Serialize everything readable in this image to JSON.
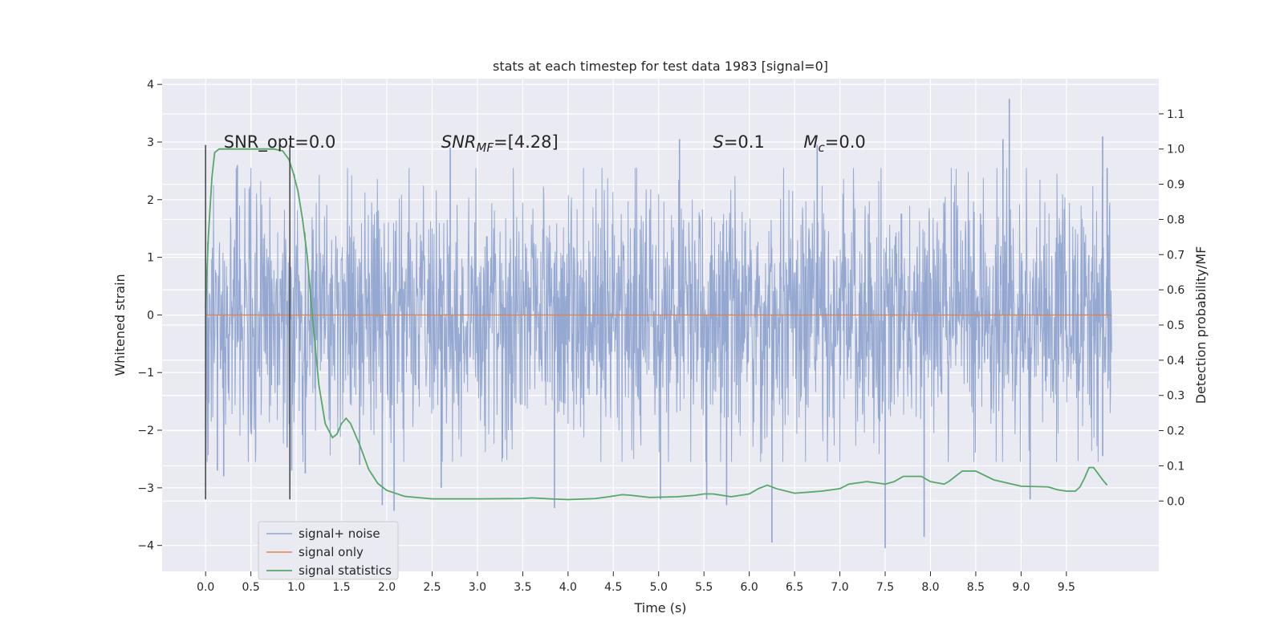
{
  "chart_data": {
    "type": "line",
    "title": "stats at each timestep for test data 1983 [signal=0]",
    "xlabel": "Time (s)",
    "ylabel": "Whitened strain",
    "y2label": "Detection probability/MF",
    "xlim": [
      -0.48,
      10.52
    ],
    "ylim": [
      -4.45,
      4.1
    ],
    "y2lim": [
      -0.2,
      1.2
    ],
    "x_ticks": [
      0.0,
      0.5,
      1.0,
      1.5,
      2.0,
      2.5,
      3.0,
      3.5,
      4.0,
      4.5,
      5.0,
      5.5,
      6.0,
      6.5,
      7.0,
      7.5,
      8.0,
      8.5,
      9.0,
      9.5
    ],
    "x_tick_labels": [
      "0.0",
      "0.5",
      "1.0",
      "1.5",
      "2.0",
      "2.5",
      "3.0",
      "3.5",
      "4.0",
      "4.5",
      "5.0",
      "5.5",
      "6.0",
      "6.5",
      "7.0",
      "7.5",
      "8.0",
      "8.5",
      "9.0",
      "9.5"
    ],
    "y_ticks": [
      4,
      3,
      2,
      1,
      0,
      -1,
      -2,
      -3,
      -4
    ],
    "y_tick_labels": [
      "4",
      "3",
      "2",
      "1",
      "0",
      "−1",
      "−2",
      "−3",
      "−4"
    ],
    "y2_ticks": [
      1.1,
      1.0,
      0.9,
      0.8,
      0.7,
      0.6,
      0.5,
      0.4,
      0.3,
      0.2,
      0.1,
      0.0
    ],
    "y2_tick_labels": [
      "1.1",
      "1.0",
      "0.9",
      "0.8",
      "0.7",
      "0.6",
      "0.5",
      "0.4",
      "0.3",
      "0.2",
      "0.1",
      "0.0"
    ],
    "grid": true,
    "legend_position": "lower-left",
    "noise_series": {
      "name": "signal+ noise",
      "color": "#8fa4cf",
      "x_range": [
        0.0,
        10.0
      ],
      "typical_amplitude": 1.7,
      "spikes": [
        {
          "x": 0.13,
          "y": -2.7
        },
        {
          "x": 0.2,
          "y": -2.8
        },
        {
          "x": 0.35,
          "y": 2.6
        },
        {
          "x": 0.95,
          "y": -2.7
        },
        {
          "x": 1.1,
          "y": -2.75
        },
        {
          "x": 1.7,
          "y": -2.6
        },
        {
          "x": 1.95,
          "y": -3.3
        },
        {
          "x": 2.08,
          "y": -3.4
        },
        {
          "x": 2.6,
          "y": -3.0
        },
        {
          "x": 2.7,
          "y": 2.9
        },
        {
          "x": 3.85,
          "y": -3.35
        },
        {
          "x": 5.02,
          "y": -3.2
        },
        {
          "x": 5.23,
          "y": 3.05
        },
        {
          "x": 5.53,
          "y": -3.2
        },
        {
          "x": 5.75,
          "y": -3.3
        },
        {
          "x": 6.25,
          "y": -3.95
        },
        {
          "x": 6.75,
          "y": 2.95
        },
        {
          "x": 7.5,
          "y": -4.05
        },
        {
          "x": 7.93,
          "y": -3.85
        },
        {
          "x": 8.87,
          "y": 3.75
        },
        {
          "x": 8.8,
          "y": 3.05
        },
        {
          "x": 9.1,
          "y": -3.2
        },
        {
          "x": 9.9,
          "y": 3.1
        },
        {
          "x": 9.95,
          "y": 2.55
        },
        {
          "x": 9.9,
          "y": -2.45
        },
        {
          "x": 0.9,
          "y": -2.3
        }
      ]
    },
    "series": [
      {
        "name": "signal only",
        "color": "#dd8452",
        "x": [
          0.0,
          10.0
        ],
        "y": [
          0.0,
          0.0
        ]
      },
      {
        "name": "signal statistics",
        "color": "#55a868",
        "axis": "right",
        "x": [
          0.0,
          0.03,
          0.07,
          0.1,
          0.15,
          0.25,
          0.5,
          0.75,
          0.85,
          0.92,
          0.97,
          1.02,
          1.07,
          1.12,
          1.17,
          1.25,
          1.32,
          1.4,
          1.45,
          1.5,
          1.55,
          1.6,
          1.7,
          1.8,
          1.9,
          2.0,
          2.2,
          2.5,
          3.0,
          3.5,
          3.6,
          3.8,
          4.0,
          4.3,
          4.45,
          4.6,
          4.7,
          4.9,
          5.2,
          5.4,
          5.5,
          5.6,
          5.8,
          6.0,
          6.1,
          6.2,
          6.3,
          6.5,
          6.8,
          7.0,
          7.1,
          7.3,
          7.5,
          7.6,
          7.7,
          7.9,
          8.0,
          8.15,
          8.2,
          8.35,
          8.5,
          8.7,
          9.0,
          9.3,
          9.4,
          9.5,
          9.6,
          9.65,
          9.7,
          9.75,
          9.8,
          9.9,
          9.95
        ],
        "y": [
          0.55,
          0.75,
          0.92,
          0.99,
          1.0,
          1.0,
          1.0,
          1.0,
          0.995,
          0.97,
          0.93,
          0.88,
          0.8,
          0.7,
          0.55,
          0.33,
          0.22,
          0.18,
          0.19,
          0.22,
          0.235,
          0.22,
          0.16,
          0.09,
          0.05,
          0.03,
          0.013,
          0.006,
          0.006,
          0.007,
          0.009,
          0.006,
          0.004,
          0.007,
          0.012,
          0.018,
          0.016,
          0.01,
          0.012,
          0.016,
          0.02,
          0.02,
          0.012,
          0.02,
          0.035,
          0.045,
          0.035,
          0.022,
          0.028,
          0.035,
          0.048,
          0.055,
          0.048,
          0.055,
          0.07,
          0.07,
          0.055,
          0.048,
          0.055,
          0.085,
          0.085,
          0.06,
          0.042,
          0.04,
          0.032,
          0.028,
          0.028,
          0.04,
          0.065,
          0.095,
          0.095,
          0.06,
          0.045
        ]
      }
    ],
    "vertical_lines": [
      {
        "x": 0.0,
        "y_from": -3.2,
        "y_to": 2.95,
        "color": "#4d4d4d"
      },
      {
        "x": 0.93,
        "y_from": -3.2,
        "y_to": 2.95,
        "color": "#4d4d4d"
      }
    ],
    "annotations": [
      {
        "text": "SNR_opt=0.0",
        "x": 0.2,
        "y": 3.0
      },
      {
        "text": "SNR_MF=[4.28]",
        "x": 2.6,
        "y": 3.0
      },
      {
        "text": "S=0.1",
        "x": 5.6,
        "y": 3.0
      },
      {
        "text": "M_c=0.0",
        "x": 6.6,
        "y": 3.0
      }
    ]
  }
}
